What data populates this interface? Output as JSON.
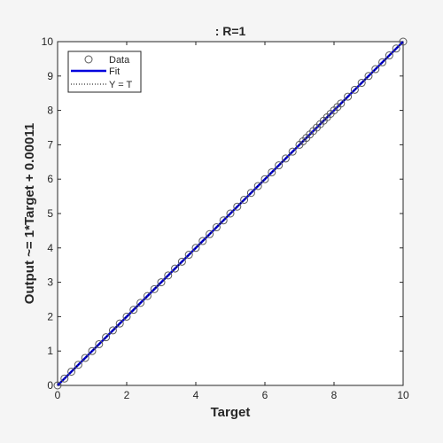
{
  "chart_data": {
    "type": "scatter",
    "title": ": R=1",
    "xlabel": "Target",
    "ylabel": "Output ~= 1*Target + 0.00011",
    "xlim": [
      0,
      10
    ],
    "ylim": [
      0,
      10
    ],
    "xticks": [
      0,
      2,
      4,
      6,
      8,
      10
    ],
    "yticks": [
      0,
      1,
      2,
      3,
      4,
      5,
      6,
      7,
      8,
      9,
      10
    ],
    "grid": false,
    "legend_position": "top-left",
    "legend": [
      "Data",
      "Fit",
      "Y = T"
    ],
    "colors": {
      "data": "#595959",
      "fit": "#0000dd",
      "identity": "#000000"
    },
    "fit": {
      "slope": 1,
      "intercept": 0.00011
    },
    "series": [
      {
        "name": "Data",
        "marker": "circle-open",
        "x": [
          0,
          0.2,
          0.4,
          0.6,
          0.8,
          1.0,
          1.2,
          1.4,
          1.6,
          1.8,
          2.0,
          2.2,
          2.4,
          2.6,
          2.8,
          3.0,
          3.2,
          3.4,
          3.6,
          3.8,
          4.0,
          4.2,
          4.4,
          4.6,
          4.8,
          5.0,
          5.2,
          5.4,
          5.6,
          5.8,
          6.0,
          6.2,
          6.4,
          6.6,
          6.8,
          7.0,
          7.1,
          7.2,
          7.3,
          7.4,
          7.5,
          7.6,
          7.7,
          7.8,
          7.9,
          8.0,
          8.1,
          8.2,
          8.4,
          8.6,
          8.8,
          9.0,
          9.2,
          9.4,
          9.6,
          9.8,
          10.0
        ],
        "y": [
          0,
          0.2,
          0.4,
          0.6,
          0.8,
          1.0,
          1.2,
          1.4,
          1.6,
          1.8,
          2.0,
          2.2,
          2.4,
          2.6,
          2.8,
          3.0,
          3.2,
          3.4,
          3.6,
          3.8,
          4.0,
          4.2,
          4.4,
          4.6,
          4.8,
          5.0,
          5.2,
          5.4,
          5.6,
          5.8,
          6.0,
          6.2,
          6.4,
          6.6,
          6.8,
          7.0,
          7.1,
          7.2,
          7.3,
          7.4,
          7.5,
          7.6,
          7.7,
          7.8,
          7.9,
          8.0,
          8.1,
          8.2,
          8.4,
          8.6,
          8.8,
          9.0,
          9.2,
          9.4,
          9.6,
          9.8,
          10.0
        ]
      },
      {
        "name": "Fit",
        "line": "solid"
      },
      {
        "name": "Y = T",
        "line": "dotted"
      }
    ]
  }
}
